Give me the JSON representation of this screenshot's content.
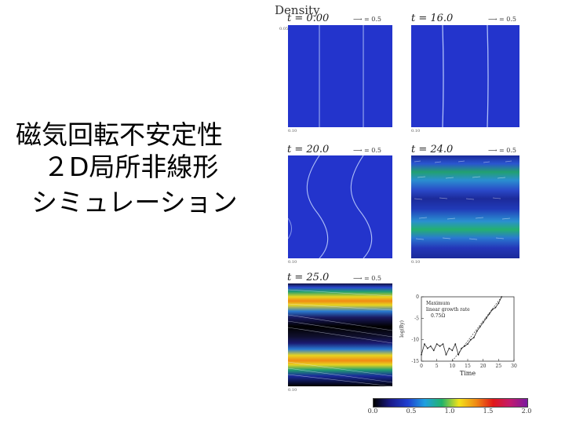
{
  "slide": {
    "title_lines": [
      "磁気回転不安定性",
      "２D局所非線形",
      "シミュレーション"
    ]
  },
  "figure": {
    "title": "Density",
    "arrow_label": "= 0.5",
    "panels": [
      {
        "label": "t = 0.00",
        "y_ticks": [
          "0.05",
          "0.05",
          "0.05"
        ],
        "x_ticks": [
          "0.10",
          "0.05",
          "0.05",
          "0.10"
        ]
      },
      {
        "label": "t = 16.0",
        "y_ticks": [
          "0.05",
          "0.05",
          "0.05"
        ],
        "x_ticks": [
          "0.10",
          "0.05",
          "0.05",
          "0.10"
        ]
      },
      {
        "label": "t = 20.0",
        "y_ticks": [
          "0.05",
          "0.05",
          "0.05"
        ],
        "x_ticks": [
          "0.10",
          "0.05",
          "0.05",
          "0.10"
        ]
      },
      {
        "label": "t = 24.0",
        "y_ticks": [
          "0.05",
          "0.05",
          "0.05"
        ],
        "x_ticks": [
          "0.10",
          "0.05",
          "0.05",
          "0.10"
        ]
      },
      {
        "label": "t = 25.0",
        "y_ticks": [
          "0.05",
          "0.05",
          "0.05"
        ],
        "x_ticks": [
          "0.10",
          "0.05",
          "0.05",
          "0.10"
        ]
      }
    ],
    "colorbar": {
      "ticks": [
        "0.0",
        "0.5",
        "1.0",
        "1.5",
        "2.0"
      ],
      "colors": [
        "#000000",
        "#1a1a8a",
        "#1f3fd0",
        "#1e9fe0",
        "#21b36a",
        "#f2e21a",
        "#f08a14",
        "#e01818",
        "#c21a6e",
        "#7a1aa0"
      ]
    }
  },
  "chart_data": {
    "type": "line",
    "xlabel": "Time",
    "ylabel": "log(By)",
    "xlim": [
      0,
      30
    ],
    "ylim": [
      -15,
      0
    ],
    "x_ticks": [
      "0",
      "5",
      "10",
      "15",
      "20",
      "25",
      "30"
    ],
    "y_ticks": [
      "0",
      "-5",
      "-10",
      "-15"
    ],
    "annotation": [
      "Maximum",
      "linear growth rate",
      "0.75Ω"
    ],
    "series": [
      {
        "x": [
          0,
          1,
          2,
          3,
          4,
          5,
          6,
          7,
          8,
          9,
          10,
          11,
          12,
          13,
          14,
          15,
          16,
          17,
          18,
          19,
          20,
          21,
          22,
          23,
          24,
          25,
          26
        ],
        "y": [
          -13.5,
          -11,
          -12,
          -11.5,
          -12.5,
          -11,
          -11.5,
          -11,
          -13.5,
          -12,
          -12.5,
          -11,
          -13.5,
          -12,
          -11.5,
          -11,
          -10,
          -9.5,
          -8,
          -7,
          -6,
          -5,
          -4,
          -3,
          -2.5,
          -1.5,
          0
        ]
      },
      {
        "x": [
          10,
          26
        ],
        "y": [
          -15,
          0
        ]
      }
    ]
  }
}
